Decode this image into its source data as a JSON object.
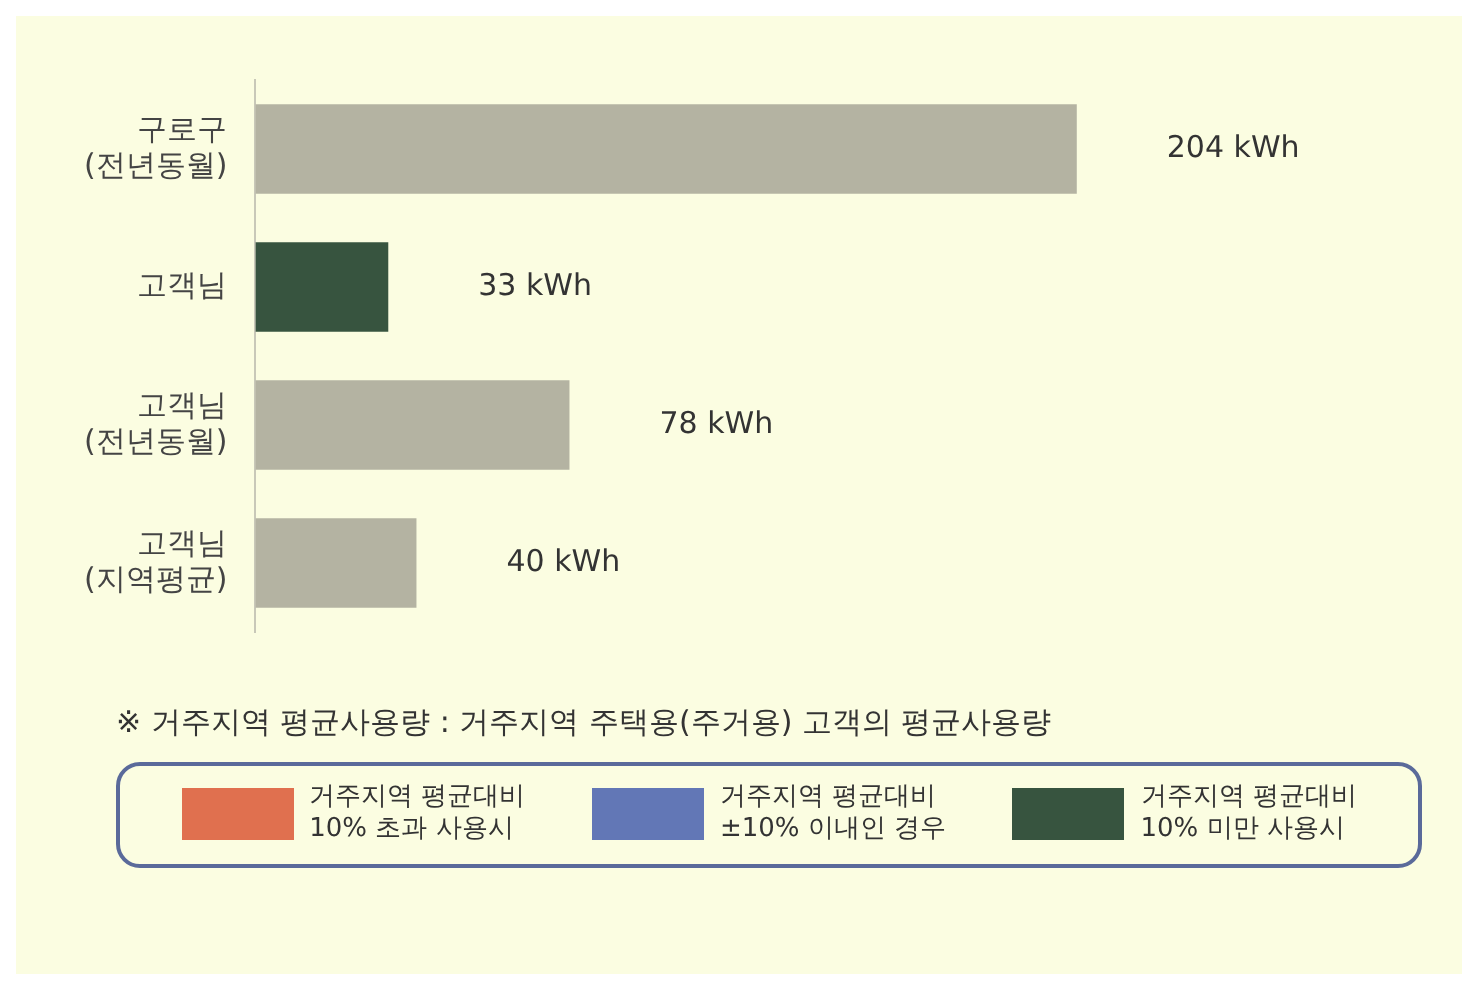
{
  "chart_data": {
    "type": "bar",
    "orientation": "horizontal",
    "stacked": true,
    "categories": [
      "구로구\n(전년동월)",
      "고객님",
      "고객님\n(전년동월)",
      "고객님\n(지역평균)"
    ],
    "series": [
      {
        "color": "#b4b3a2",
        "values": [
          204,
          null,
          78,
          40
        ],
        "value_labels": [
          "204 kWh",
          null,
          "78 kWh",
          "40 kWh"
        ]
      },
      {
        "name": "거주지역 평균대비\n10% 초과 사용시",
        "color": "#e0704f",
        "values": [
          null,
          null,
          null,
          null
        ]
      },
      {
        "name": "거주지역 평균대비\n±10% 이내인 경우",
        "color": "#6277b6",
        "values": [
          null,
          null,
          null,
          null
        ]
      },
      {
        "name": "거주지역 평균대비\n10% 미만 사용시",
        "color": "#37543f",
        "values": [
          null,
          33,
          null,
          null
        ],
        "value_labels": [
          null,
          "33 kWh",
          null,
          null
        ]
      }
    ],
    "annotations": [
      "※ 거주지역 평균사용량 : 거주지역 주택용(주거용) 고객의 평균사용량"
    ],
    "tick_labels": "y",
    "legend": "bottom"
  }
}
